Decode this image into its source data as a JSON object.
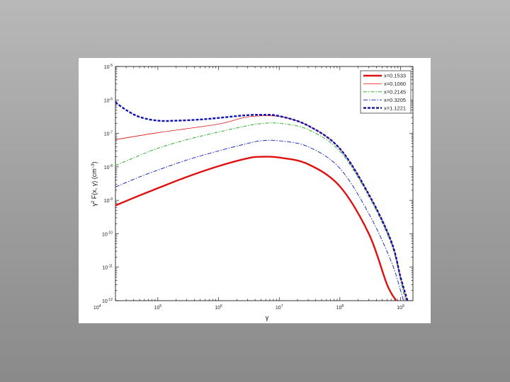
{
  "chart_data": {
    "type": "line",
    "xlabel": "γ",
    "ylabel_parts": [
      "γ",
      "2",
      " F(x, γ)   (cm",
      "−3",
      ")"
    ],
    "xscale": "log",
    "yscale": "log",
    "xlim": [
      20000,
      1600000000.0
    ],
    "ylim": [
      1e-12,
      1e-05
    ],
    "grid": false,
    "legend_position": "top-right",
    "x_ticks": [
      {
        "base": "10",
        "exp": "4",
        "value": 10000.0
      },
      {
        "base": "10",
        "exp": "5",
        "value": 100000.0
      },
      {
        "base": "10",
        "exp": "6",
        "value": 1000000.0
      },
      {
        "base": "10",
        "exp": "7",
        "value": 10000000.0
      },
      {
        "base": "10",
        "exp": "8",
        "value": 100000000.0
      },
      {
        "base": "10",
        "exp": "9",
        "value": 1000000000.0
      }
    ],
    "y_ticks": [
      {
        "base": "10",
        "exp": "-5",
        "value": 1e-05
      },
      {
        "base": "10",
        "exp": "-6",
        "value": 1e-06
      },
      {
        "base": "10",
        "exp": "-7",
        "value": 1e-07
      },
      {
        "base": "10",
        "exp": "-8",
        "value": 1e-08
      },
      {
        "base": "10",
        "exp": "-9",
        "value": 1e-09
      },
      {
        "base": "10",
        "exp": "-10",
        "value": 1e-10
      },
      {
        "base": "10",
        "exp": "-11",
        "value": 1e-11
      },
      {
        "base": "10",
        "exp": "-12",
        "value": 1e-12
      }
    ],
    "series": [
      {
        "name": "x=0.1533",
        "color": "#e01010",
        "dash": "",
        "width": 2.4,
        "x": [
          20000,
          50000,
          100000,
          300000,
          1000000,
          3000000,
          5000000,
          10000000,
          30000000,
          100000000,
          300000000,
          600000000,
          850000000
        ],
        "y": [
          7e-10,
          1.4e-09,
          2.3e-09,
          5e-09,
          1.05e-08,
          1.8e-08,
          2e-08,
          1.9e-08,
          1.2e-08,
          2.6e-09,
          1e-10,
          3e-12,
          1e-12
        ]
      },
      {
        "name": "x=0.1060",
        "color": "#e01010",
        "dash": "",
        "width": 0.8,
        "x": [
          20000,
          100000,
          1000000,
          3000000,
          10000000,
          30000000,
          100000000,
          300000000,
          700000000,
          1000000000,
          1250000000
        ],
        "y": [
          6.5e-08,
          1.05e-07,
          1.9e-07,
          3.1e-07,
          3.2e-07,
          1.7e-07,
          3.5e-08,
          1.5e-09,
          6e-11,
          5e-12,
          1e-12
        ]
      },
      {
        "name": "x=0.2145",
        "color": "#2ab02a",
        "dash": "5,2,1.5,2",
        "width": 1,
        "x": [
          20000,
          50000,
          100000,
          300000,
          1000000,
          3000000,
          5000000,
          10000000,
          30000000,
          100000000,
          300000000,
          700000000,
          1000000000,
          1200000000
        ],
        "y": [
          1.1e-08,
          2.2e-08,
          3.6e-08,
          6.5e-08,
          1.1e-07,
          1.7e-07,
          1.95e-07,
          2e-07,
          1.3e-07,
          2.9e-08,
          1.3e-09,
          5e-11,
          4e-12,
          1e-12
        ]
      },
      {
        "name": "x=0.3205",
        "color": "#2030c0",
        "dash": "6,2,1.5,2",
        "width": 1,
        "x": [
          20000,
          50000,
          100000,
          300000,
          1000000,
          3000000,
          5000000,
          10000000,
          30000000,
          100000000,
          300000000,
          700000000,
          1000000000,
          1120000000
        ],
        "y": [
          2.5e-09,
          5e-09,
          8e-09,
          1.6e-08,
          3e-08,
          5e-08,
          6e-08,
          6e-08,
          4e-08,
          9e-09,
          4e-10,
          1.5e-11,
          2e-12,
          1e-12
        ]
      },
      {
        "name": "x=1.1221",
        "color": "#1010b0",
        "dash": "4,2",
        "width": 2.4,
        "x": [
          20000,
          30000,
          50000,
          100000,
          200000,
          500000,
          1000000,
          2000000,
          3000000,
          5000000,
          10000000,
          30000000,
          100000000,
          300000000,
          700000000,
          1000000000,
          1300000000
        ],
        "y": [
          8.5e-07,
          5e-07,
          3.1e-07,
          2.4e-07,
          2.4e-07,
          2.6e-07,
          2.9e-07,
          3.3e-07,
          3.5e-07,
          3.6e-07,
          3.3e-07,
          1.7e-07,
          3.5e-08,
          1.5e-09,
          6e-11,
          5e-12,
          1e-12
        ]
      }
    ]
  }
}
